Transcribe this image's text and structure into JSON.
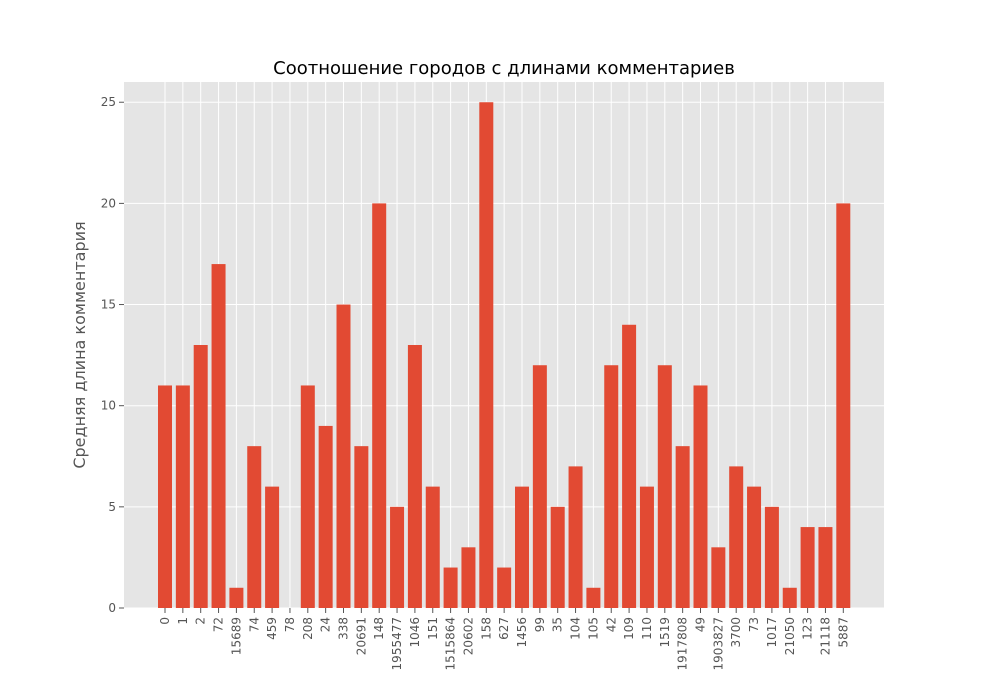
{
  "chart_data": {
    "type": "bar",
    "title": "Соотношение городов с длинами комментариев",
    "xlabel": "",
    "ylabel": "Средняя длина комментария",
    "ylim": [
      0,
      26
    ],
    "yticks": [
      "0",
      "5",
      "10",
      "15",
      "20",
      "25"
    ],
    "grid": true,
    "colors": {
      "bar": "#E24A33",
      "plot_bg": "#E5E5E5",
      "grid": "#FFFFFF"
    },
    "categories": [
      "0",
      "1",
      "2",
      "72",
      "15689",
      "74",
      "459",
      "78",
      "208",
      "24",
      "338",
      "20691",
      "148",
      "1955477",
      "1046",
      "151",
      "1515864",
      "20602",
      "158",
      "627",
      "1456",
      "99",
      "35",
      "104",
      "105",
      "42",
      "109",
      "110",
      "1519",
      "1917808",
      "49",
      "1903827",
      "3700",
      "73",
      "1017",
      "21050",
      "123",
      "21118",
      "5887"
    ],
    "values": [
      11,
      11,
      13,
      17,
      1,
      8,
      6,
      0,
      11,
      9,
      15,
      8,
      20,
      5,
      13,
      6,
      2,
      3,
      25,
      2,
      6,
      12,
      5,
      7,
      1,
      12,
      14,
      6,
      12,
      8,
      11,
      3,
      7,
      6,
      5,
      1,
      4,
      4,
      20
    ]
  }
}
